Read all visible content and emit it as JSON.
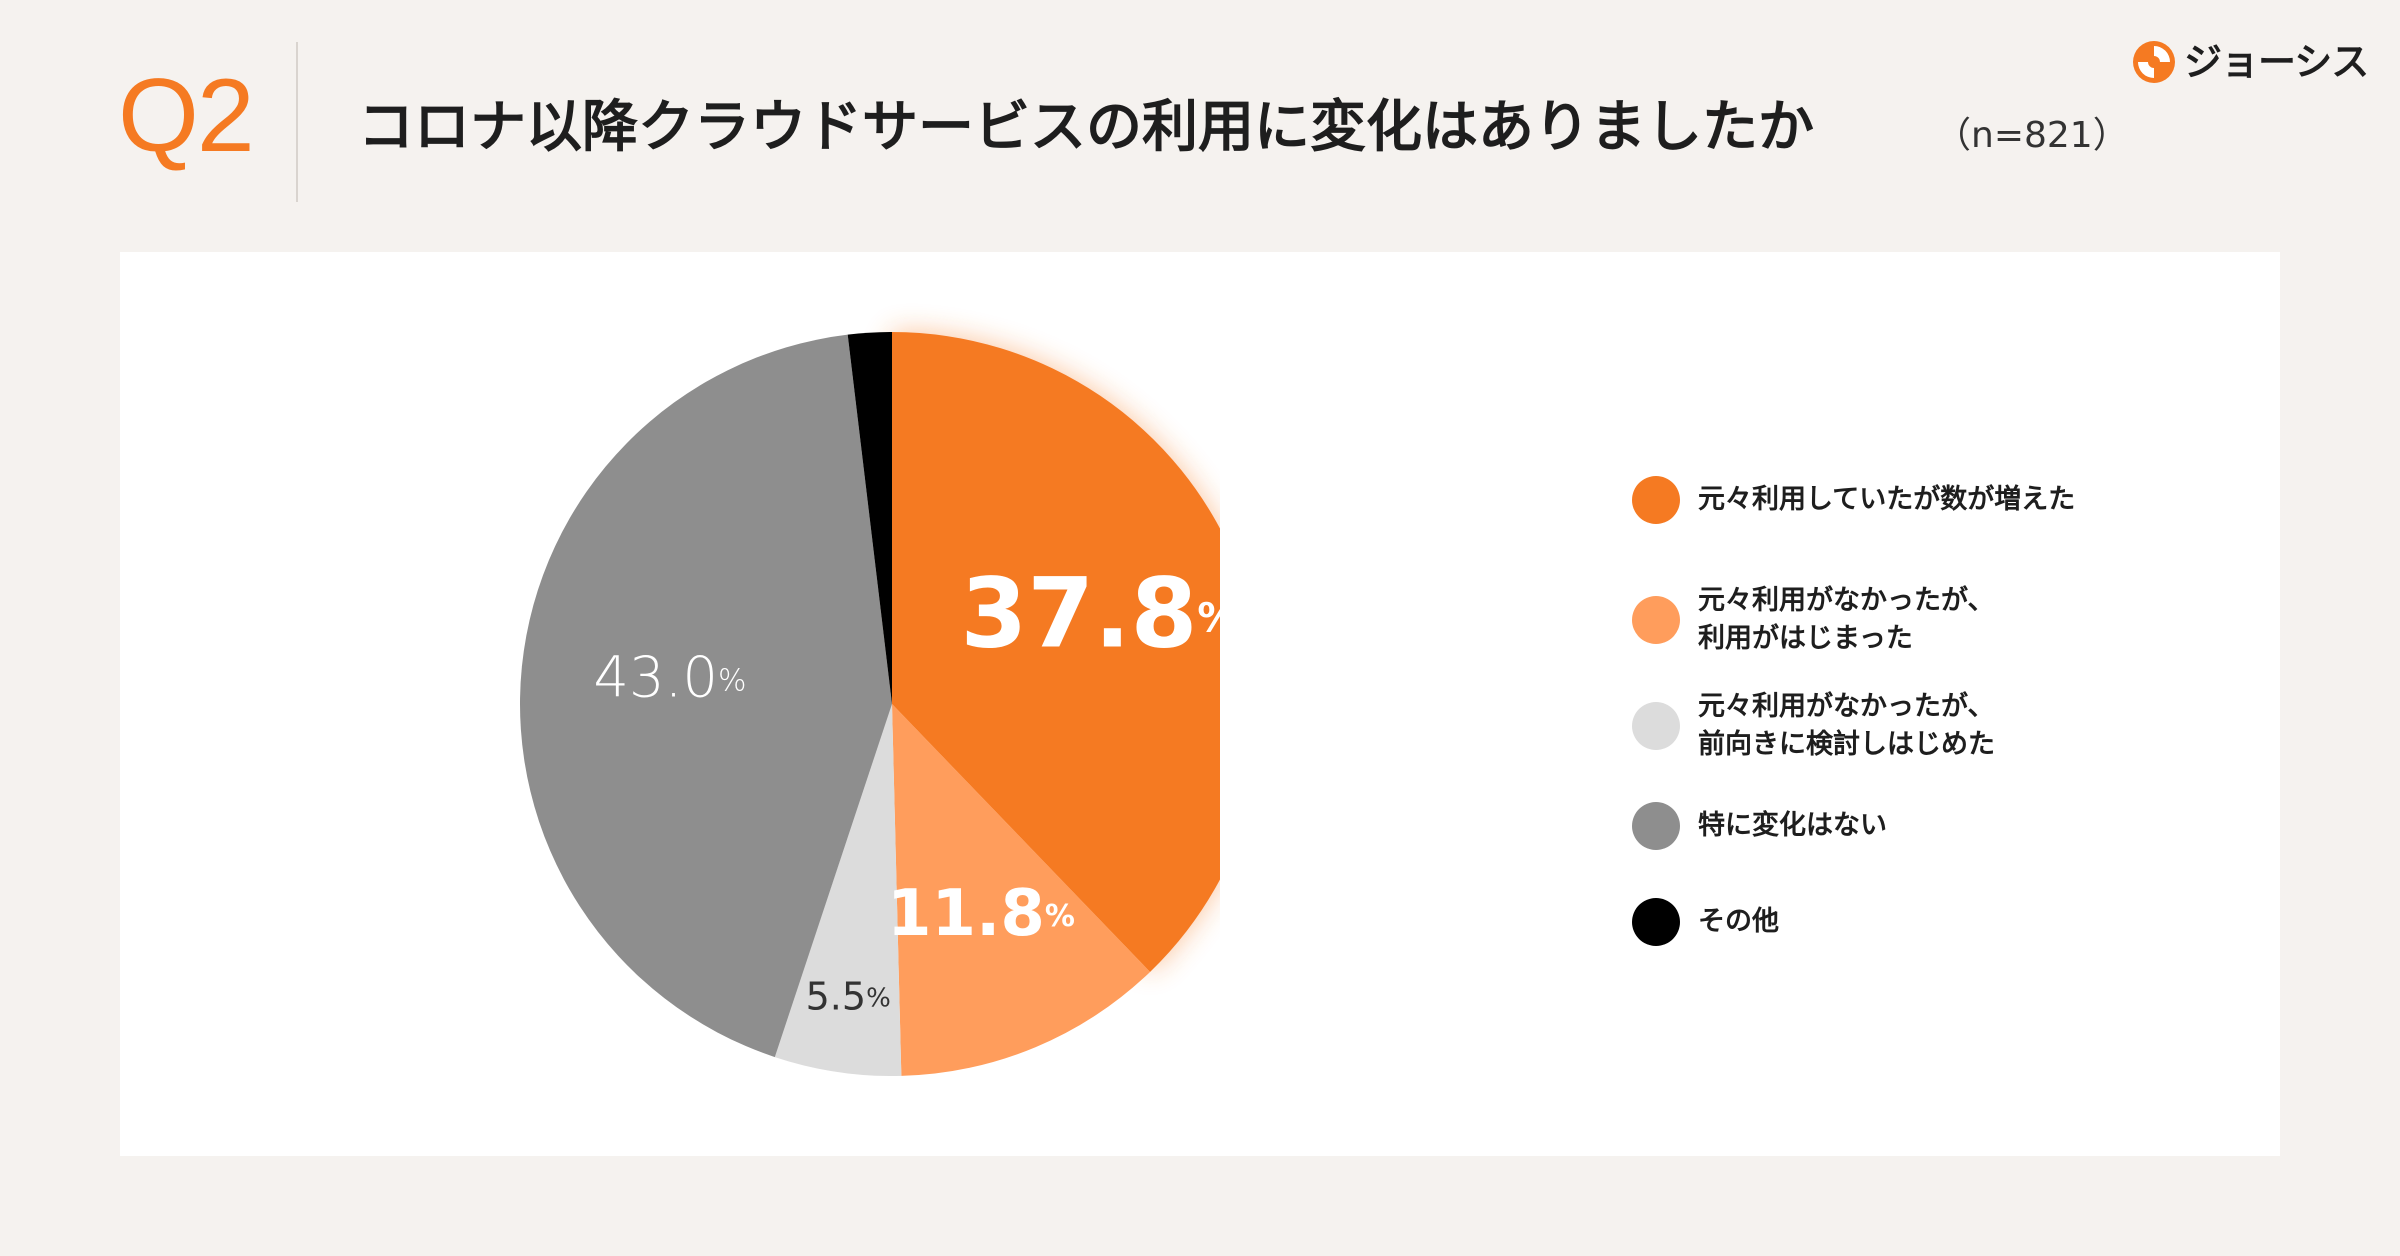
{
  "header": {
    "question_label": "Q2",
    "title": "コロナ以降クラウドサービスの利用に変化はありましたか",
    "sample_size": "（n=821）",
    "brand_name": "ジョーシス"
  },
  "colors": {
    "accent": "#f57a22",
    "series": [
      "#f57a22",
      "#ff9d5c",
      "#dcdcdc",
      "#8e8e8e",
      "#000000"
    ]
  },
  "chart_data": {
    "type": "pie",
    "title": "コロナ以降クラウドサービスの利用に変化はありましたか",
    "n": 821,
    "unit": "%",
    "start_angle_deg": 0,
    "direction": "clockwise",
    "slices": [
      {
        "label": "元々利用していたが数が増えた",
        "value": 37.8,
        "display": "37.8",
        "color": "#f57a22",
        "text_color": "#ffffff",
        "weight": "bold",
        "size": "large"
      },
      {
        "label": "元々利用がなかったが、\n利用がはじまった",
        "value": 11.8,
        "display": "11.8",
        "color": "#ff9d5c",
        "text_color": "#ffffff",
        "weight": "bold",
        "size": "medium"
      },
      {
        "label": "元々利用がなかったが、\n前向きに検討しはじめた",
        "value": 5.5,
        "display": "5.5",
        "color": "#dcdcdc",
        "text_color": "#333333",
        "weight": "normal",
        "size": "small"
      },
      {
        "label": "特に変化はない",
        "value": 43.0,
        "display": "43.0",
        "color": "#8e8e8e",
        "text_color": "#ffffff",
        "weight": "normal",
        "size": "medium-light"
      },
      {
        "label": "その他",
        "value": 1.9,
        "display": "",
        "color": "#000000",
        "text_color": "#ffffff",
        "weight": "normal",
        "size": "none"
      }
    ]
  }
}
